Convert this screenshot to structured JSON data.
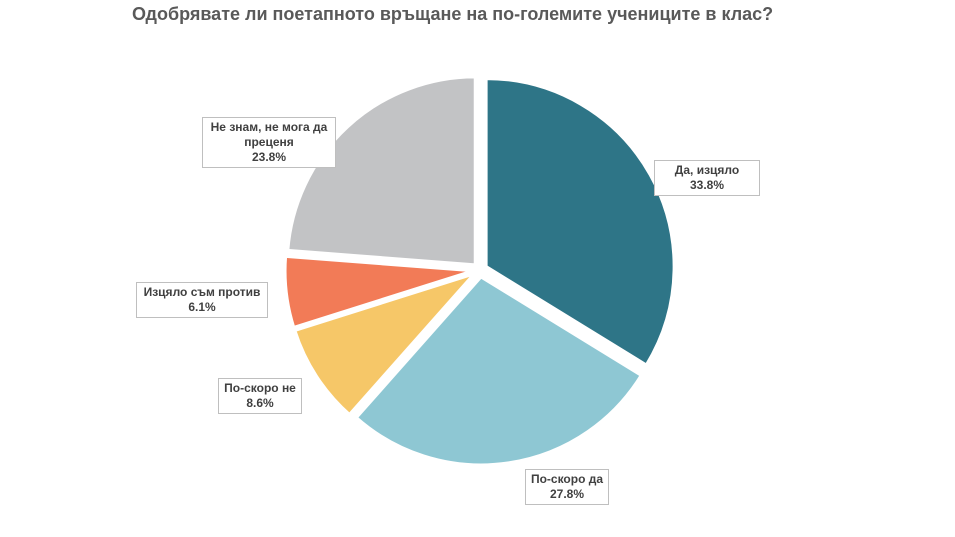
{
  "chart_data": {
    "type": "pie",
    "title": "Одобрявате ли поетапното връщане на по-големите учениците в клас?",
    "slices": [
      {
        "label": "Да, изцяло",
        "value": 33.8,
        "value_label": "33.8%",
        "color": "#2e7587"
      },
      {
        "label": "По-скоро да",
        "value": 27.8,
        "value_label": "27.8%",
        "color": "#8ec7d3"
      },
      {
        "label": "По-скоро не",
        "value": 8.6,
        "value_label": "8.6%",
        "color": "#f6c768"
      },
      {
        "label": "Изцяло съм против",
        "value": 6.1,
        "value_label": "6.1%",
        "color": "#f27b57"
      },
      {
        "label": "Не знам, не мога да преценя",
        "label_lines": [
          "Не знам, не мога да",
          "преценя"
        ],
        "value": 23.8,
        "value_label": "23.8%",
        "color": "#c2c3c5"
      }
    ]
  }
}
